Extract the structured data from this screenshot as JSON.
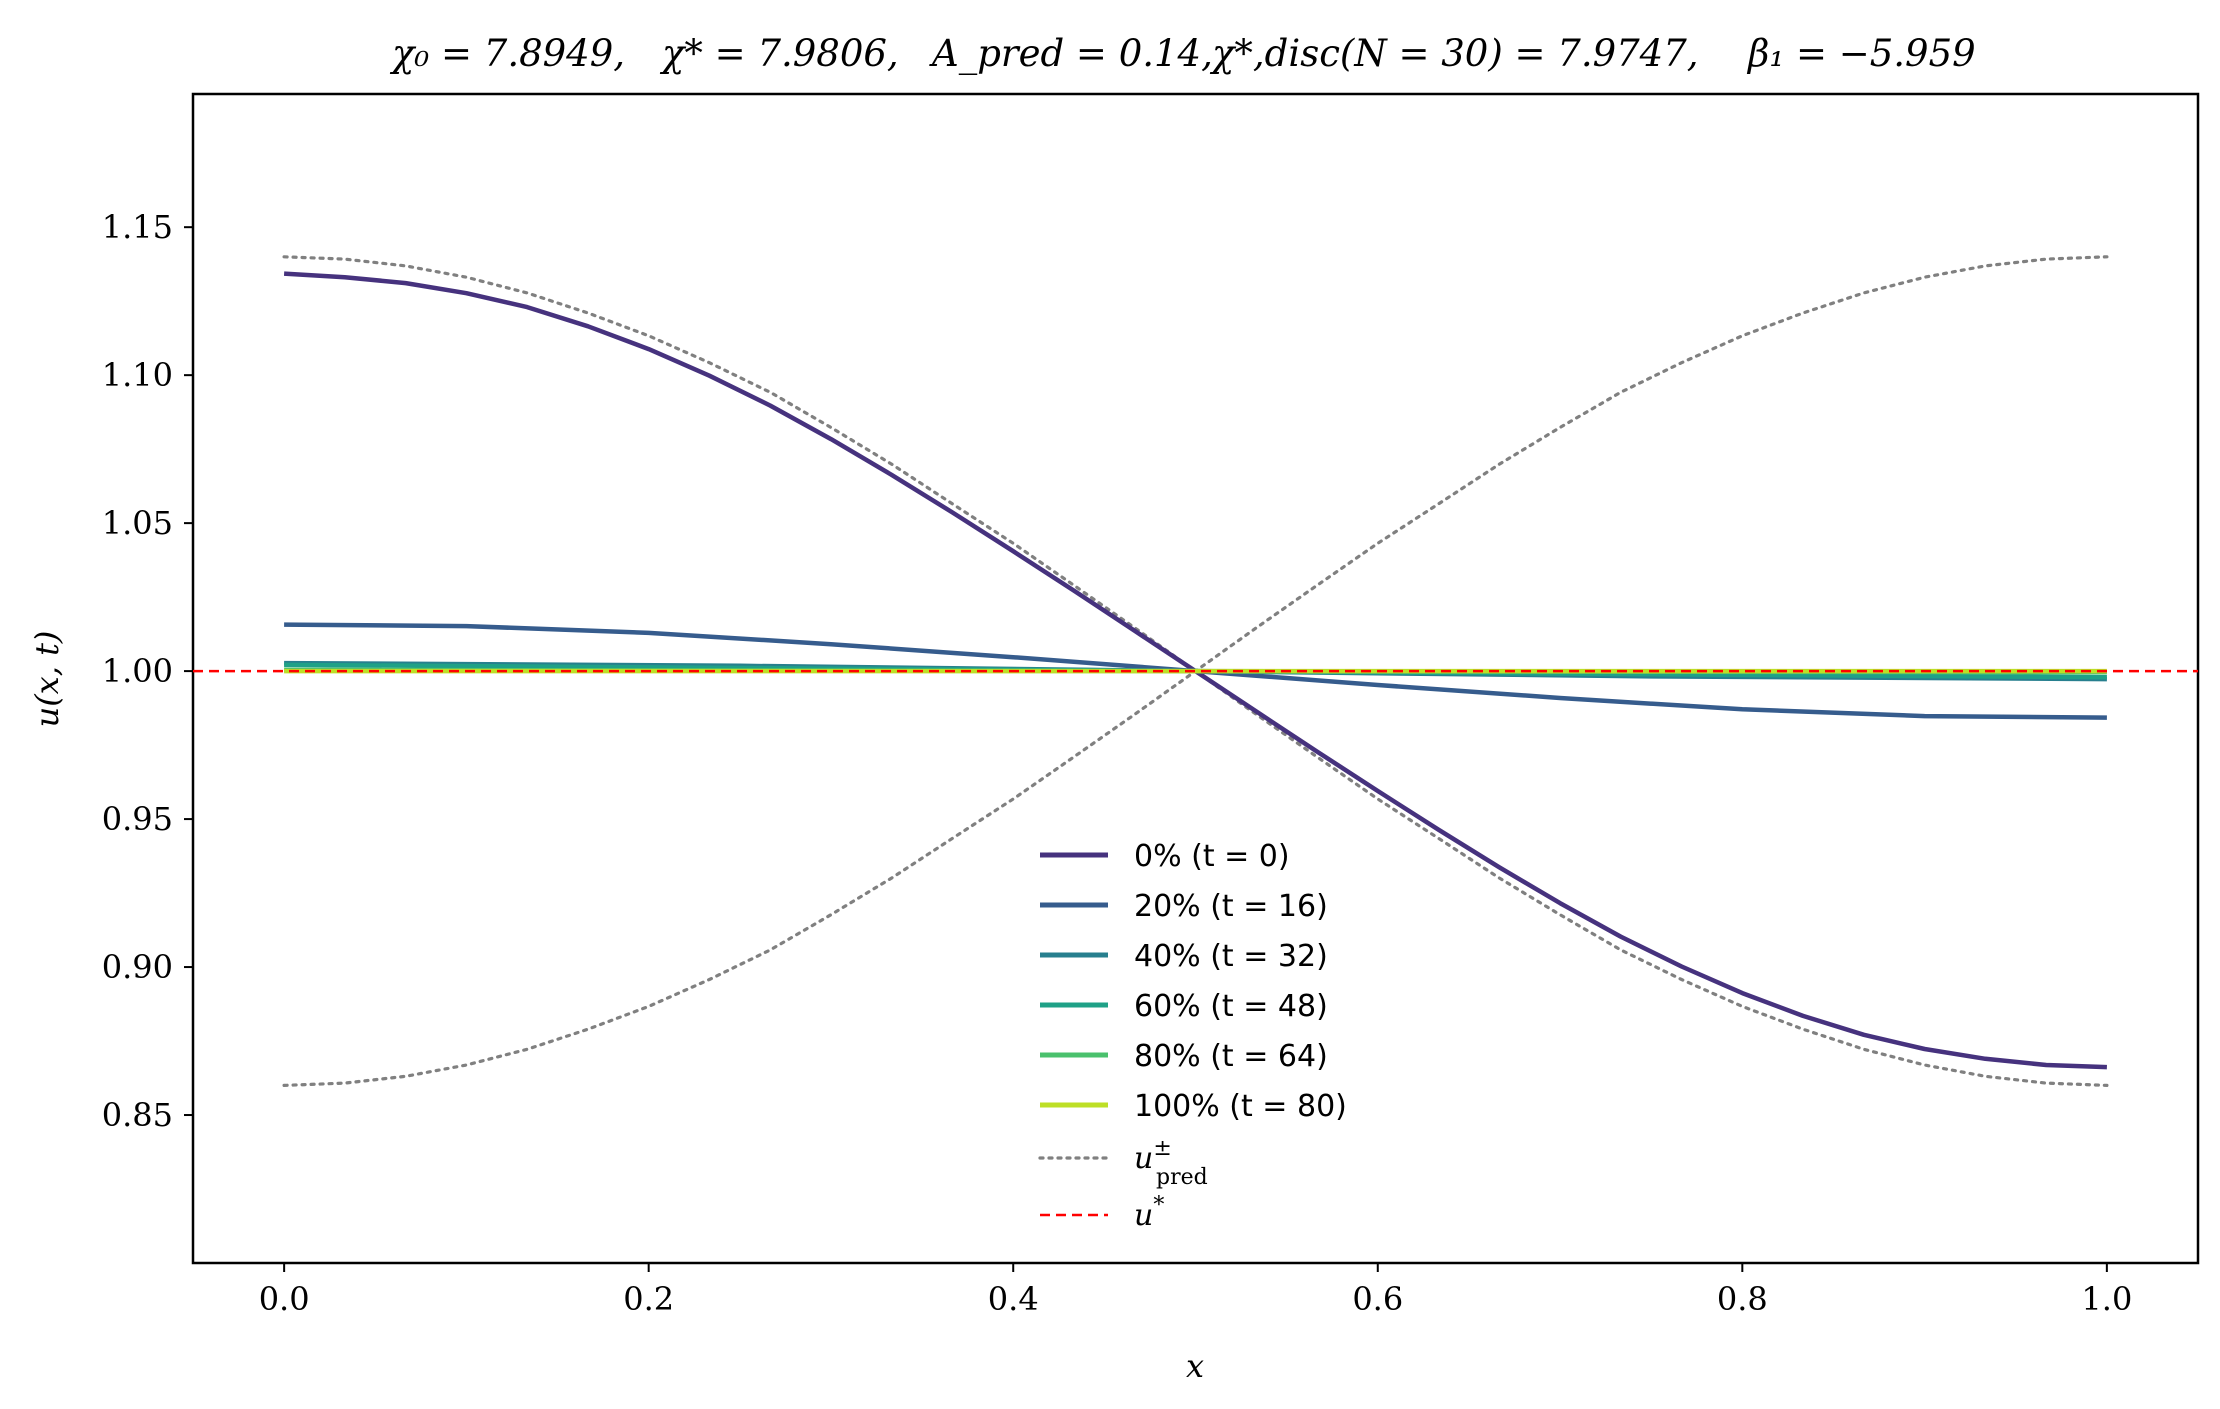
{
  "chart_data": {
    "type": "line",
    "title": "χ₀ = 7.8949,  χ* = 7.9806,  A_pred = 0.14,  χ*,disc(N = 30) = 7.9747,  β₁ = −5.959",
    "title_parts": {
      "chi0": "χ₀ = 7.8949,",
      "chistar": "χ* = 7.9806,",
      "apred": "A_pred = 0.14,",
      "chidisc": "χ*,disc(N = 30) = 7.9747,",
      "beta1": "β₁ = −5.959"
    },
    "xlabel": "x",
    "ylabel": "u(x, t)",
    "xlim": [
      -0.05,
      1.05
    ],
    "ylim": [
      0.8,
      1.195
    ],
    "xticks": [
      "0.0",
      "0.2",
      "0.4",
      "0.6",
      "0.8",
      "1.0"
    ],
    "yticks": [
      "0.85",
      "0.90",
      "0.95",
      "1.00",
      "1.05",
      "1.10",
      "1.15"
    ],
    "grid": false,
    "legend_position": "lower-center",
    "series": [
      {
        "name": "0% (t = 0)",
        "color": "#46327e",
        "style": "solid",
        "x": [
          0,
          0.0333,
          0.0667,
          0.1,
          0.1333,
          0.1667,
          0.2,
          0.2333,
          0.2667,
          0.3,
          0.3333,
          0.3667,
          0.4,
          0.4333,
          0.4667,
          0.5,
          0.5333,
          0.5667,
          0.6,
          0.6333,
          0.6667,
          0.7,
          0.7333,
          0.7667,
          0.8,
          0.8333,
          0.8667,
          0.9,
          0.9333,
          0.9667,
          1
        ],
        "y": [
          1.1343,
          1.1331,
          1.1311,
          1.1277,
          1.123,
          1.1165,
          1.1088,
          1.0998,
          1.0897,
          1.0784,
          1.0663,
          1.0536,
          1.0405,
          1.0272,
          1.0136,
          1.0,
          0.9864,
          0.9728,
          0.9595,
          0.9464,
          0.9337,
          0.9216,
          0.9103,
          0.9002,
          0.8912,
          0.8835,
          0.8771,
          0.8723,
          0.869,
          0.8669,
          0.8662
        ]
      },
      {
        "name": "20% (t = 16)",
        "color": "#365c8d",
        "style": "solid",
        "x": [
          0,
          0.1,
          0.2,
          0.3,
          0.4,
          0.5,
          0.6,
          0.7,
          0.8,
          0.9,
          1
        ],
        "y": [
          1.0157,
          1.0152,
          1.0129,
          1.0091,
          1.0047,
          1.0,
          0.9953,
          0.9909,
          0.9871,
          0.9848,
          0.9843
        ]
      },
      {
        "name": "40% (t = 32)",
        "color": "#277f8e",
        "style": "solid",
        "x": [
          0,
          0.25,
          0.5,
          0.75,
          1
        ],
        "y": [
          1.0027,
          1.0018,
          1.0,
          0.9982,
          0.9973
        ]
      },
      {
        "name": "60% (t = 48)",
        "color": "#1fa187",
        "style": "solid",
        "x": [
          0,
          0.5,
          1
        ],
        "y": [
          1.0021,
          1.0,
          0.9979
        ]
      },
      {
        "name": "80% (t = 64)",
        "color": "#4ac16d",
        "style": "solid",
        "x": [
          0,
          0.5,
          1
        ],
        "y": [
          1.0004,
          1.0,
          0.9996
        ]
      },
      {
        "name": "100% (t = 80)",
        "color": "#bddf26",
        "style": "solid",
        "x": [
          0,
          0.5,
          1
        ],
        "y": [
          1.0,
          1.0,
          1.0
        ]
      },
      {
        "name": "u±pred",
        "legend_main": "u",
        "legend_sup": "±",
        "legend_sub": "pred",
        "color": "#808080",
        "style": "dotted",
        "x": [
          0,
          0.0333,
          0.0667,
          0.1,
          0.1333,
          0.1667,
          0.2,
          0.2333,
          0.2667,
          0.3,
          0.3333,
          0.3667,
          0.4,
          0.4333,
          0.4667,
          0.5,
          0.5333,
          0.5667,
          0.6,
          0.6333,
          0.6667,
          0.7,
          0.7333,
          0.7667,
          0.8,
          0.8333,
          0.8667,
          0.9,
          0.9333,
          0.9667,
          1
        ],
        "y": [
          1.14,
          1.1392,
          1.1369,
          1.1331,
          1.1278,
          1.121,
          1.1133,
          1.1042,
          1.0942,
          1.0823,
          1.0699,
          1.0565,
          1.0432,
          1.029,
          1.0146,
          1.0,
          0.9854,
          0.971,
          0.9568,
          0.9435,
          0.9301,
          0.9177,
          0.9058,
          0.8958,
          0.8867,
          0.879,
          0.8722,
          0.8669,
          0.8631,
          0.8608,
          0.86
        ],
        "y_mirror": [
          0.86,
          0.8608,
          0.8631,
          0.8669,
          0.8722,
          0.879,
          0.8867,
          0.8958,
          0.9058,
          0.9177,
          0.9301,
          0.9435,
          0.9568,
          0.971,
          0.9854,
          1.0,
          1.0146,
          1.029,
          1.0432,
          1.0565,
          1.0699,
          1.0823,
          1.0942,
          1.1042,
          1.1133,
          1.121,
          1.1278,
          1.1331,
          1.1369,
          1.1392,
          1.14
        ]
      },
      {
        "name": "u*",
        "legend_main": "u",
        "legend_sup": "*",
        "color": "#ff0000",
        "style": "dashed",
        "horizontal_y": 1.0
      }
    ]
  }
}
